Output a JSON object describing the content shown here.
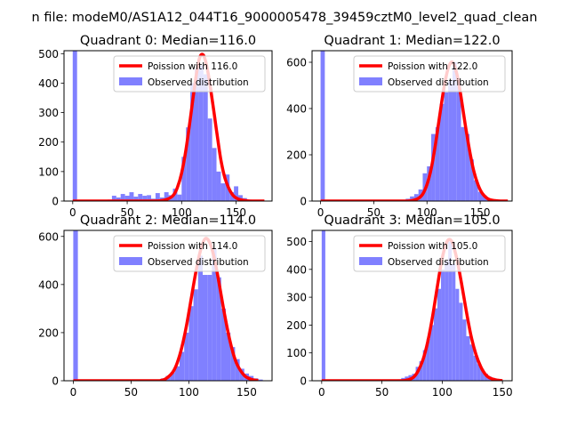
{
  "figure": {
    "suptitle": "n file: modeM0/AS1A12_044T16_9000005478_39459cztM0_level2_quad_clean"
  },
  "chart_data": [
    {
      "type": "bar+line",
      "title": "Quadrant 0: Median=116.0",
      "median": 116.0,
      "xlim": [
        -8,
        183
      ],
      "ylim": [
        0,
        510
      ],
      "xticks": [
        0,
        50,
        100,
        150
      ],
      "yticks": [
        0,
        100,
        200,
        300,
        400,
        500
      ],
      "legend": {
        "position": "top-right",
        "line_label": "Poission with 116.0",
        "bar_label": "Observed distribution"
      },
      "colors": {
        "line": "#ff0000",
        "bars": "#8080ff"
      },
      "histogram": {
        "bin_width": 4,
        "bins": [
          [
            0,
            510
          ],
          [
            28,
            3
          ],
          [
            32,
            5
          ],
          [
            36,
            18
          ],
          [
            40,
            12
          ],
          [
            44,
            24
          ],
          [
            48,
            18
          ],
          [
            52,
            30
          ],
          [
            56,
            15
          ],
          [
            60,
            24
          ],
          [
            64,
            18
          ],
          [
            68,
            20
          ],
          [
            72,
            8
          ],
          [
            76,
            27
          ],
          [
            80,
            12
          ],
          [
            84,
            30
          ],
          [
            88,
            20
          ],
          [
            92,
            42
          ],
          [
            96,
            22
          ],
          [
            100,
            150
          ],
          [
            104,
            250
          ],
          [
            108,
            400
          ],
          [
            112,
            450
          ],
          [
            116,
            460
          ],
          [
            120,
            430
          ],
          [
            124,
            280
          ],
          [
            128,
            180
          ],
          [
            132,
            100
          ],
          [
            136,
            60
          ],
          [
            140,
            90
          ],
          [
            144,
            30
          ],
          [
            148,
            50
          ],
          [
            152,
            20
          ],
          [
            156,
            10
          ],
          [
            160,
            5
          ]
        ]
      },
      "poisson_curve": {
        "x": [
          0,
          70,
          80,
          86,
          92,
          96,
          100,
          104,
          108,
          112,
          116,
          120,
          124,
          128,
          132,
          136,
          140,
          146,
          152,
          160,
          170,
          176
        ],
        "y": [
          0,
          0,
          1,
          5,
          18,
          45,
          95,
          175,
          280,
          390,
          480,
          495,
          440,
          345,
          240,
          140,
          75,
          25,
          7,
          1,
          0,
          0
        ]
      }
    },
    {
      "type": "bar+line",
      "title": "Quadrant 1: Median=122.0",
      "median": 122.0,
      "xlim": [
        -8,
        180
      ],
      "ylim": [
        0,
        650
      ],
      "xticks": [
        0,
        50,
        100,
        150
      ],
      "yticks": [
        0,
        200,
        400,
        600
      ],
      "legend": {
        "position": "top-right",
        "line_label": "Poission with 122.0",
        "bar_label": "Observed distribution"
      },
      "colors": {
        "line": "#ff0000",
        "bars": "#8080ff"
      },
      "histogram": {
        "bin_width": 4,
        "bins": [
          [
            0,
            650
          ],
          [
            76,
            5
          ],
          [
            80,
            10
          ],
          [
            84,
            20
          ],
          [
            88,
            30
          ],
          [
            92,
            50
          ],
          [
            96,
            120
          ],
          [
            100,
            150
          ],
          [
            104,
            290
          ],
          [
            108,
            320
          ],
          [
            112,
            420
          ],
          [
            116,
            470
          ],
          [
            120,
            520
          ],
          [
            124,
            600
          ],
          [
            128,
            500
          ],
          [
            132,
            320
          ],
          [
            136,
            290
          ],
          [
            140,
            180
          ],
          [
            144,
            90
          ],
          [
            148,
            40
          ],
          [
            152,
            25
          ],
          [
            156,
            10
          ],
          [
            160,
            5
          ]
        ]
      },
      "poisson_curve": {
        "x": [
          0,
          70,
          80,
          86,
          92,
          96,
          100,
          104,
          108,
          112,
          116,
          120,
          124,
          128,
          132,
          136,
          140,
          144,
          148,
          152,
          158,
          166,
          176
        ],
        "y": [
          0,
          0,
          0,
          2,
          12,
          30,
          72,
          140,
          245,
          370,
          490,
          575,
          600,
          550,
          450,
          330,
          220,
          130,
          70,
          33,
          8,
          1,
          0
        ]
      }
    },
    {
      "type": "bar+line",
      "title": "Quadrant 2: Median=114.0",
      "median": 114.0,
      "xlim": [
        -8,
        172
      ],
      "ylim": [
        0,
        625
      ],
      "xticks": [
        0,
        50,
        100,
        150
      ],
      "yticks": [
        0,
        200,
        400,
        600
      ],
      "legend": {
        "position": "top-right",
        "line_label": "Poission with 114.0",
        "bar_label": "Observed distribution"
      },
      "colors": {
        "line": "#ff0000",
        "bars": "#8080ff"
      },
      "histogram": {
        "bin_width": 4,
        "bins": [
          [
            0,
            625
          ],
          [
            72,
            5
          ],
          [
            76,
            10
          ],
          [
            80,
            20
          ],
          [
            84,
            35
          ],
          [
            88,
            60
          ],
          [
            92,
            120
          ],
          [
            96,
            200
          ],
          [
            100,
            310
          ],
          [
            104,
            380
          ],
          [
            108,
            520
          ],
          [
            112,
            440
          ],
          [
            116,
            440
          ],
          [
            120,
            550
          ],
          [
            124,
            430
          ],
          [
            128,
            300
          ],
          [
            132,
            200
          ],
          [
            136,
            140
          ],
          [
            140,
            90
          ],
          [
            144,
            50
          ],
          [
            148,
            30
          ],
          [
            152,
            20
          ],
          [
            156,
            10
          ],
          [
            160,
            5
          ]
        ]
      },
      "poisson_curve": {
        "x": [
          0,
          70,
          76,
          80,
          86,
          90,
          94,
          98,
          102,
          106,
          110,
          114,
          118,
          122,
          126,
          130,
          134,
          138,
          142,
          148,
          154,
          160
        ],
        "y": [
          0,
          0,
          2,
          8,
          35,
          75,
          140,
          230,
          340,
          450,
          540,
          590,
          575,
          510,
          410,
          300,
          200,
          120,
          65,
          22,
          6,
          1
        ]
      }
    },
    {
      "type": "bar+line",
      "title": "Quadrant 3: Median=105.0",
      "median": 105.0,
      "xlim": [
        -8,
        158
      ],
      "ylim": [
        0,
        540
      ],
      "xticks": [
        0,
        50,
        100,
        150
      ],
      "yticks": [
        0,
        100,
        200,
        300,
        400,
        500
      ],
      "legend": {
        "position": "top-right",
        "line_label": "Poission with 105.0",
        "bar_label": "Observed distribution"
      },
      "colors": {
        "line": "#ff0000",
        "bars": "#8080ff"
      },
      "histogram": {
        "bin_width": 3,
        "bins": [
          [
            0,
            540
          ],
          [
            60,
            3
          ],
          [
            63,
            5
          ],
          [
            66,
            10
          ],
          [
            69,
            15
          ],
          [
            72,
            20
          ],
          [
            75,
            25
          ],
          [
            78,
            50
          ],
          [
            81,
            70
          ],
          [
            84,
            110
          ],
          [
            87,
            150
          ],
          [
            90,
            200
          ],
          [
            93,
            260
          ],
          [
            96,
            330
          ],
          [
            99,
            400
          ],
          [
            102,
            430
          ],
          [
            105,
            500
          ],
          [
            108,
            420
          ],
          [
            111,
            330
          ],
          [
            114,
            280
          ],
          [
            117,
            220
          ],
          [
            120,
            160
          ],
          [
            123,
            130
          ],
          [
            126,
            90
          ],
          [
            129,
            60
          ],
          [
            132,
            40
          ],
          [
            135,
            25
          ],
          [
            138,
            15
          ],
          [
            141,
            10
          ],
          [
            144,
            5
          ]
        ]
      },
      "poisson_curve": {
        "x": [
          0,
          60,
          70,
          76,
          80,
          84,
          88,
          92,
          96,
          100,
          104,
          108,
          112,
          116,
          120,
          124,
          128,
          132,
          136,
          140,
          146,
          150
        ],
        "y": [
          0,
          0,
          2,
          12,
          35,
          75,
          140,
          230,
          340,
          440,
          500,
          500,
          440,
          350,
          250,
          160,
          95,
          50,
          22,
          9,
          2,
          0
        ]
      }
    }
  ]
}
